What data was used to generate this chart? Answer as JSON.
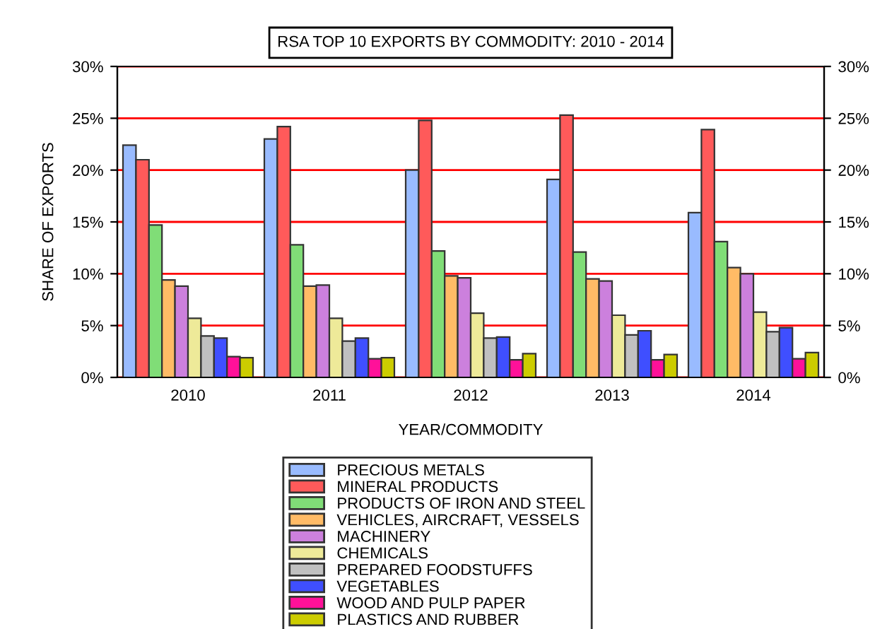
{
  "chart_data": {
    "type": "bar",
    "title": "RSA TOP 10 EXPORTS BY COMMODITY: 2010 - 2014",
    "xlabel": "YEAR/COMMODITY",
    "ylabel": "SHARE OF EXPORTS",
    "categories": [
      "2010",
      "2011",
      "2012",
      "2013",
      "2014"
    ],
    "series": [
      {
        "name": "PRECIOUS METALS",
        "color": "#99bbff",
        "values": [
          22.4,
          23.0,
          20.0,
          19.1,
          15.9
        ]
      },
      {
        "name": "MINERAL PRODUCTS",
        "color": "#ff5a5a",
        "values": [
          21.0,
          24.2,
          24.8,
          25.3,
          23.9
        ]
      },
      {
        "name": "PRODUCTS OF IRON AND STEEL",
        "color": "#80dd77",
        "values": [
          14.7,
          12.8,
          12.2,
          12.1,
          13.1
        ]
      },
      {
        "name": "VEHICLES, AIRCRAFT, VESSELS",
        "color": "#ffbb66",
        "values": [
          9.4,
          8.8,
          9.8,
          9.5,
          10.6
        ]
      },
      {
        "name": "MACHINERY",
        "color": "#cc80dd",
        "values": [
          8.8,
          8.9,
          9.6,
          9.3,
          10.0
        ]
      },
      {
        "name": "CHEMICALS",
        "color": "#eeea99",
        "values": [
          5.7,
          5.7,
          6.2,
          6.0,
          6.3
        ]
      },
      {
        "name": "PREPARED FOODSTUFFS",
        "color": "#c0c0c0",
        "values": [
          4.0,
          3.5,
          3.8,
          4.1,
          4.4
        ]
      },
      {
        "name": "VEGETABLES",
        "color": "#3f4fff",
        "values": [
          3.8,
          3.8,
          3.9,
          4.5,
          4.8
        ]
      },
      {
        "name": "WOOD AND PULP PAPER",
        "color": "#ff1199",
        "values": [
          2.0,
          1.8,
          1.7,
          1.7,
          1.8
        ]
      },
      {
        "name": "PLASTICS AND RUBBER",
        "color": "#cccc00",
        "values": [
          1.9,
          1.9,
          2.3,
          2.2,
          2.4
        ]
      }
    ],
    "ylim": [
      0,
      30
    ],
    "yticks": [
      {
        "value": 0,
        "label": "0%"
      },
      {
        "value": 5,
        "label": "5%"
      },
      {
        "value": 10,
        "label": "10%"
      },
      {
        "value": 15,
        "label": "15%"
      },
      {
        "value": 20,
        "label": "20%"
      },
      {
        "value": 25,
        "label": "25%"
      },
      {
        "value": 30,
        "label": "30%"
      }
    ],
    "y2lim": [
      0,
      30
    ],
    "y2ticks": [
      {
        "value": 0,
        "label": "0%"
      },
      {
        "value": 5,
        "label": "5%"
      },
      {
        "value": 10,
        "label": "10%"
      },
      {
        "value": 15,
        "label": "15%"
      },
      {
        "value": 20,
        "label": "20%"
      },
      {
        "value": 25,
        "label": "25%"
      },
      {
        "value": 30,
        "label": "30%"
      }
    ],
    "grid": "y",
    "legend": "bottom"
  }
}
